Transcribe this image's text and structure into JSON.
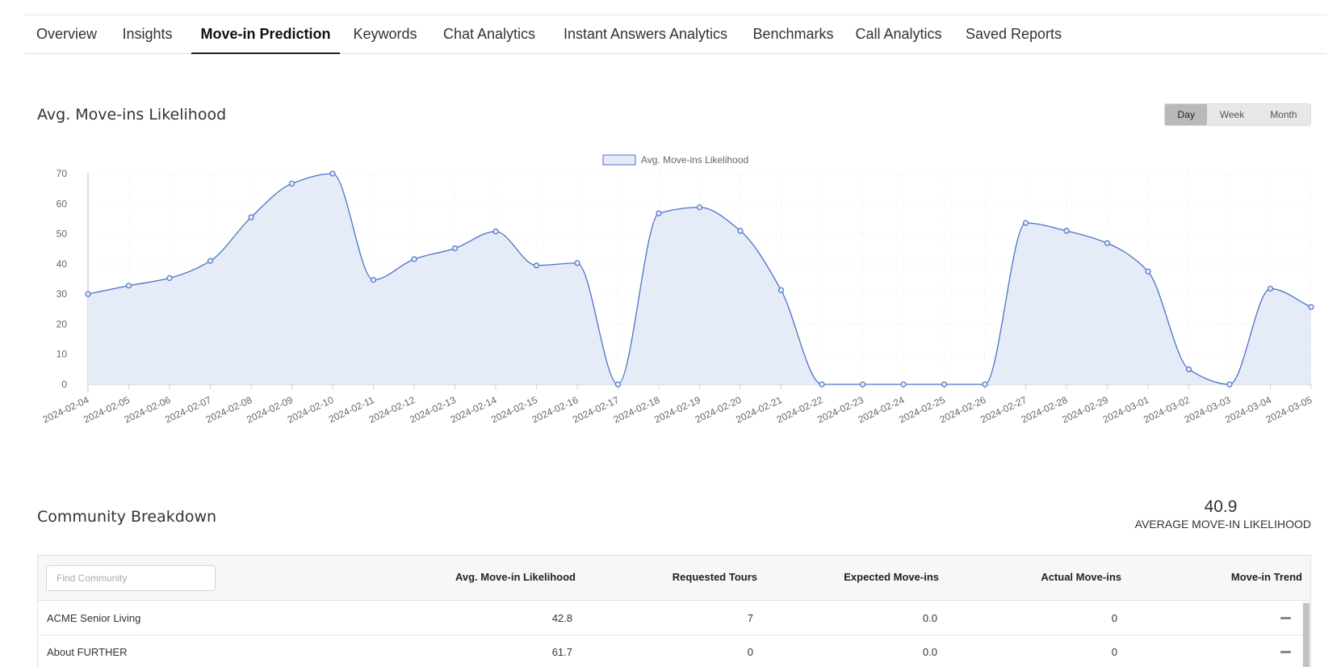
{
  "tabs": [
    {
      "label": "Overview",
      "active": false
    },
    {
      "label": "Insights",
      "active": false
    },
    {
      "label": "Move-in Prediction",
      "active": true
    },
    {
      "label": "Keywords",
      "active": false
    },
    {
      "label": "Chat Analytics",
      "active": false
    },
    {
      "label": "Instant Answers Analytics",
      "active": false
    },
    {
      "label": "Benchmarks",
      "active": false
    },
    {
      "label": "Call Analytics",
      "active": false
    },
    {
      "label": "Saved Reports",
      "active": false
    }
  ],
  "likelihood_section": {
    "title": "Avg. Move-ins Likelihood",
    "range_buttons": [
      {
        "label": "Day",
        "active": true
      },
      {
        "label": "Week",
        "active": false
      },
      {
        "label": "Month",
        "active": false
      }
    ]
  },
  "chart_data": {
    "type": "area",
    "title": "",
    "xlabel": "",
    "ylabel": "",
    "ylim": [
      0,
      70
    ],
    "yticks": [
      0,
      10,
      20,
      30,
      40,
      50,
      60,
      70
    ],
    "grid": true,
    "legend_position": "top-center",
    "x": [
      "2024-02-04",
      "2024-02-05",
      "2024-02-06",
      "2024-02-07",
      "2024-02-08",
      "2024-02-09",
      "2024-02-10",
      "2024-02-11",
      "2024-02-12",
      "2024-02-13",
      "2024-02-14",
      "2024-02-15",
      "2024-02-16",
      "2024-02-17",
      "2024-02-18",
      "2024-02-19",
      "2024-02-20",
      "2024-02-21",
      "2024-02-22",
      "2024-02-23",
      "2024-02-24",
      "2024-02-25",
      "2024-02-26",
      "2024-02-27",
      "2024-02-28",
      "2024-02-29",
      "2024-03-01",
      "2024-03-02",
      "2024-03-03",
      "2024-03-04",
      "2024-03-05"
    ],
    "series": [
      {
        "name": "Avg. Move-ins Likelihood",
        "color": "#4a72c8",
        "fill": "#e6ecf7",
        "values": [
          30.0,
          32.8,
          35.3,
          41.0,
          55.5,
          66.7,
          70.0,
          34.7,
          41.6,
          45.2,
          50.8,
          39.5,
          40.3,
          0,
          56.8,
          58.8,
          51.0,
          31.3,
          0,
          0,
          0,
          0,
          0,
          53.6,
          51.0,
          46.9,
          37.5,
          5.0,
          0,
          31.8,
          25.7
        ]
      }
    ]
  },
  "community_section": {
    "title": "Community Breakdown",
    "average_value": "40.9",
    "average_label": "AVERAGE MOVE-IN LIKELIHOOD",
    "search_placeholder": "Find Community",
    "columns": [
      "Avg. Move-in Likelihood",
      "Requested Tours",
      "Expected Move-ins",
      "Actual Move-ins",
      "Move-in Trend"
    ],
    "rows": [
      {
        "name": "ACME Senior Living",
        "likelihood": "42.8",
        "tours": "7",
        "expected": "0.0",
        "actual": "0",
        "trend": "flat"
      },
      {
        "name": "About FURTHER",
        "likelihood": "61.7",
        "tours": "0",
        "expected": "0.0",
        "actual": "0",
        "trend": "flat"
      }
    ]
  }
}
